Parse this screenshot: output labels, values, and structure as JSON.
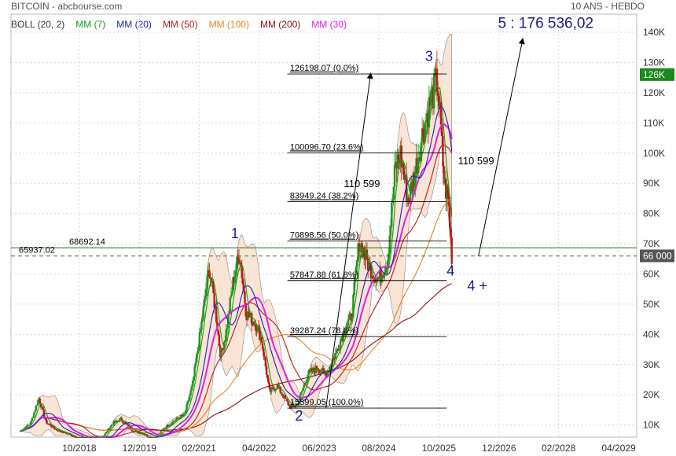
{
  "header": {
    "left": "BITCOIN - abcbourse.com",
    "right": "10 ANS - HEBDO"
  },
  "chart_data": {
    "type": "candlestick",
    "legend": [
      {
        "name": "BOLL (20, 2)",
        "color": "#333333"
      },
      {
        "name": "MM (7)",
        "color": "#1a9a1a"
      },
      {
        "name": "MM (20)",
        "color": "#1f1fbf"
      },
      {
        "name": "MM (50)",
        "color": "#c01818"
      },
      {
        "name": "MM (100)",
        "color": "#f08020"
      },
      {
        "name": "MM (200)",
        "color": "#8b1010"
      },
      {
        "name": "MM (30)",
        "color": "#e020e0"
      }
    ],
    "y_ticks": [
      {
        "v": 10000,
        "label": "10K"
      },
      {
        "v": 20000,
        "label": "20K"
      },
      {
        "v": 30000,
        "label": "30K"
      },
      {
        "v": 40000,
        "label": "40K"
      },
      {
        "v": 50000,
        "label": "50K"
      },
      {
        "v": 60000,
        "label": "60K"
      },
      {
        "v": 70000,
        "label": "70K"
      },
      {
        "v": 80000,
        "label": "80K"
      },
      {
        "v": 90000,
        "label": "90K"
      },
      {
        "v": 100000,
        "label": "100K"
      },
      {
        "v": 110000,
        "label": "110K"
      },
      {
        "v": 120000,
        "label": "120K"
      },
      {
        "v": 130000,
        "label": "130K"
      },
      {
        "v": 140000,
        "label": "140K"
      }
    ],
    "ylim": [
      6000,
      146000
    ],
    "x_ticks": [
      {
        "t": 2018.75,
        "label": "10/2018"
      },
      {
        "t": 2019.92,
        "label": "12/2019"
      },
      {
        "t": 2021.08,
        "label": "02/2021"
      },
      {
        "t": 2022.25,
        "label": "04/2022"
      },
      {
        "t": 2023.42,
        "label": "06/2023"
      },
      {
        "t": 2024.58,
        "label": "08/2024"
      },
      {
        "t": 2025.75,
        "label": "10/2025"
      },
      {
        "t": 2026.92,
        "label": "12/2026"
      },
      {
        "t": 2028.08,
        "label": "02/2028"
      },
      {
        "t": 2029.25,
        "label": "04/2029"
      }
    ],
    "xlim": [
      2017.42,
      2029.6
    ],
    "price_tags": [
      {
        "v": 126000,
        "label": "126K",
        "color": "#1a8a1a"
      },
      {
        "v": 66000,
        "label": "66 000",
        "color": "#555555"
      }
    ],
    "levels": [
      {
        "v": 68692.14,
        "label": "68692.14",
        "style": "solid"
      },
      {
        "v": 65937.02,
        "label": "65937.02",
        "style": "dashed"
      }
    ],
    "fibonacci": [
      {
        "v": 126198.07,
        "label": "126198.07  (0.0%)"
      },
      {
        "v": 100096.7,
        "label": "100096.70  (23.6%)"
      },
      {
        "v": 83949.24,
        "label": "83949.24  (38.2%)"
      },
      {
        "v": 70898.56,
        "label": "70898.56  (50.0%)"
      },
      {
        "v": 57847.88,
        "label": "57847.88  (61.8%)"
      },
      {
        "v": 39287.24,
        "label": "39287.24  (78.6%)"
      },
      {
        "v": 15599.05,
        "label": "15599.05  (100.0%)"
      }
    ],
    "wave_labels": [
      {
        "label": "1",
        "t": 2021.7,
        "v": 71800
      },
      {
        "label": "2",
        "t": 2022.95,
        "v": 11400
      },
      {
        "label": "3",
        "t": 2025.48,
        "v": 130500
      },
      {
        "label": "4",
        "t": 2025.9,
        "v": 59500
      },
      {
        "label": "4 +",
        "t": 2026.3,
        "v": 54500
      },
      {
        "label": "5 : 176 536,02",
        "t": 2026.9,
        "v": 141500
      }
    ],
    "annotations": [
      {
        "label": "110 599",
        "t": 2023.9,
        "v": 88700
      },
      {
        "label": "110 599",
        "t": 2026.12,
        "v": 96300
      }
    ],
    "projection_arrows": [
      {
        "from": [
          2023.55,
          15599
        ],
        "to": [
          2024.42,
          126198
        ]
      },
      {
        "from": [
          2026.52,
          65937
        ],
        "to": [
          2027.38,
          176536
        ]
      }
    ],
    "price_path": [
      [
        2017.6,
        8000
      ],
      [
        2017.8,
        10500
      ],
      [
        2017.96,
        19000
      ],
      [
        2018.1,
        11000
      ],
      [
        2018.3,
        8500
      ],
      [
        2018.6,
        6600
      ],
      [
        2018.9,
        4000
      ],
      [
        2019.1,
        3600
      ],
      [
        2019.4,
        10500
      ],
      [
        2019.55,
        12000
      ],
      [
        2019.8,
        8000
      ],
      [
        2020.0,
        7200
      ],
      [
        2020.2,
        4800
      ],
      [
        2020.4,
        9000
      ],
      [
        2020.6,
        11500
      ],
      [
        2020.8,
        13500
      ],
      [
        2020.95,
        23000
      ],
      [
        2021.1,
        40000
      ],
      [
        2021.28,
        62000
      ],
      [
        2021.4,
        48000
      ],
      [
        2021.5,
        33000
      ],
      [
        2021.6,
        40000
      ],
      [
        2021.75,
        58000
      ],
      [
        2021.87,
        67000
      ],
      [
        2022.0,
        47000
      ],
      [
        2022.2,
        43000
      ],
      [
        2022.3,
        38000
      ],
      [
        2022.45,
        21000
      ],
      [
        2022.6,
        23000
      ],
      [
        2022.85,
        16000
      ],
      [
        2023.0,
        17000
      ],
      [
        2023.2,
        27000
      ],
      [
        2023.4,
        29000
      ],
      [
        2023.55,
        26500
      ],
      [
        2023.75,
        34000
      ],
      [
        2023.92,
        42000
      ],
      [
        2024.05,
        46000
      ],
      [
        2024.2,
        71000
      ],
      [
        2024.4,
        62000
      ],
      [
        2024.58,
        58000
      ],
      [
        2024.75,
        65000
      ],
      [
        2024.9,
        95000
      ],
      [
        2025.0,
        100000
      ],
      [
        2025.15,
        84000
      ],
      [
        2025.3,
        95000
      ],
      [
        2025.45,
        108000
      ],
      [
        2025.6,
        118000
      ],
      [
        2025.72,
        124000
      ],
      [
        2025.78,
        110000
      ],
      [
        2025.85,
        90000
      ],
      [
        2025.93,
        85000
      ],
      [
        2026.0,
        66000
      ]
    ]
  }
}
